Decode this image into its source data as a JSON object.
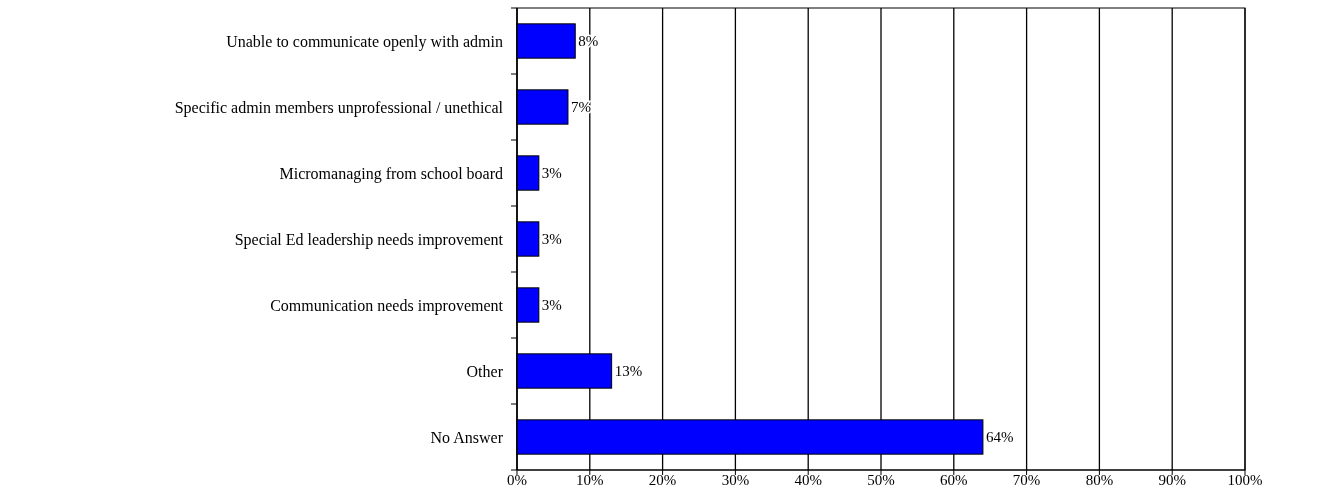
{
  "chart_data": {
    "type": "bar",
    "orientation": "horizontal",
    "categories": [
      "Unable to communicate openly with admin",
      "Specific admin members unprofessional / unethical",
      "Micromanaging from school board",
      "Special Ed leadership needs improvement",
      "Communication needs improvement",
      "Other",
      "No Answer"
    ],
    "values": [
      8,
      7,
      3,
      3,
      3,
      13,
      64
    ],
    "value_labels": [
      "8%",
      "7%",
      "3%",
      "3%",
      "3%",
      "13%",
      "64%"
    ],
    "color": "#0000ff",
    "xlim": [
      0,
      100
    ],
    "xticks": [
      {
        "value": 0,
        "label": "0%"
      },
      {
        "value": 10,
        "label": "10%"
      },
      {
        "value": 20,
        "label": "20%"
      },
      {
        "value": 30,
        "label": "30%"
      },
      {
        "value": 40,
        "label": "40%"
      },
      {
        "value": 50,
        "label": "50%"
      },
      {
        "value": 60,
        "label": "60%"
      },
      {
        "value": 70,
        "label": "70%"
      },
      {
        "value": 80,
        "label": "80%"
      },
      {
        "value": 90,
        "label": "90%"
      },
      {
        "value": 100,
        "label": "100%"
      }
    ],
    "grid": "x"
  }
}
